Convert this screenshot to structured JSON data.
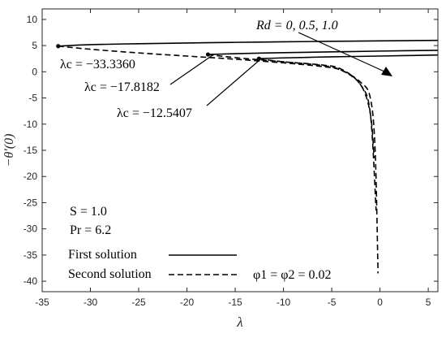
{
  "chart_data": {
    "type": "line",
    "xlabel": "λ",
    "ylabel": "−θ′(0)",
    "xlim": [
      -35,
      6
    ],
    "ylim": [
      -42,
      12
    ],
    "xticks": [
      "-35",
      "-30",
      "-25",
      "-20",
      "-15",
      "-10",
      "-5",
      "0",
      "5"
    ],
    "yticks": [
      "10",
      "5",
      "0",
      "-5",
      "-10",
      "-15",
      "-20",
      "-25",
      "-30",
      "-35",
      "-40"
    ],
    "grid": false,
    "legend": {
      "placement": "bottom-left",
      "entries": [
        {
          "label": "First solution",
          "style": "solid"
        },
        {
          "label": "Second solution",
          "style": "dashed"
        }
      ]
    },
    "annotations": {
      "rd": "Rd = 0, 0.5, 1.0",
      "lc1": "λc = −33.3360",
      "lc2": "λc = −17.8182",
      "lc3": "λc = −12.5407",
      "params_s": "S = 1.0",
      "params_pr": "Pr = 6.2",
      "phi": "φ1 = φ2 = 0.02"
    },
    "series": [
      {
        "rd": "0",
        "critical_lambda": -33.336,
        "first": {
          "x": [
            -33.336,
            -30,
            -25,
            -20,
            -15,
            -10,
            -5,
            0,
            6
          ],
          "y": [
            4.9,
            5.18,
            5.36,
            5.5,
            5.62,
            5.72,
            5.82,
            5.9,
            6.0
          ]
        },
        "second": {
          "x": [
            -33.336,
            -30,
            -25,
            -20,
            -15,
            -10,
            -6,
            -4,
            -2,
            -1,
            -0.5,
            -0.2
          ],
          "y": [
            4.9,
            4.3,
            3.6,
            3.0,
            2.4,
            1.7,
            1.0,
            0.3,
            -2.0,
            -5.0,
            -15.0,
            -38.5
          ]
        }
      },
      {
        "rd": "0.5",
        "critical_lambda": -17.8182,
        "first": {
          "x": [
            -17.8182,
            -15,
            -10,
            -5,
            0,
            6
          ],
          "y": [
            3.3,
            3.45,
            3.65,
            3.8,
            3.95,
            4.1
          ]
        },
        "second": {
          "x": [
            -17.8182,
            -15,
            -10,
            -6,
            -4,
            -2,
            -1,
            -0.6
          ],
          "y": [
            3.3,
            2.7,
            1.9,
            1.2,
            0.3,
            -2.5,
            -8.0,
            -16.5
          ]
        }
      },
      {
        "rd": "1.0",
        "critical_lambda": -12.5407,
        "first": {
          "x": [
            -12.5407,
            -10,
            -5,
            0,
            6
          ],
          "y": [
            2.5,
            2.65,
            2.85,
            3.0,
            3.2
          ]
        },
        "second": {
          "x": [
            -12.5407,
            -10,
            -6,
            -4,
            -2,
            -1,
            -0.4
          ],
          "y": [
            2.5,
            1.9,
            1.3,
            0.5,
            -2.5,
            -8.0,
            -26.5
          ]
        }
      }
    ]
  }
}
